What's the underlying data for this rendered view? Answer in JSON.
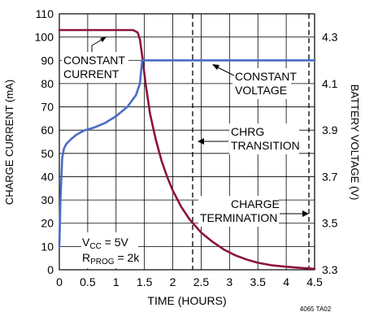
{
  "chart_data": {
    "type": "line",
    "xlabel": "TIME (HOURS)",
    "ylabel": "CHARGE CURRENT (mA)",
    "y2label": "BATTERY VOLTAGE (V)",
    "xlim": [
      0,
      4.5
    ],
    "ylim": [
      0,
      110
    ],
    "y2lim": [
      3.3,
      4.4
    ],
    "x_ticks": [
      "0",
      "0.5",
      "1",
      "1.5",
      "2",
      "2.5",
      "3",
      "3.5",
      "4",
      "4.5"
    ],
    "y_ticks": [
      "0",
      "10",
      "20",
      "30",
      "40",
      "50",
      "60",
      "70",
      "80",
      "90",
      "100",
      "110"
    ],
    "y2_ticks": [
      "3.3",
      "3.5",
      "3.7",
      "3.9",
      "4.1",
      "4.3"
    ],
    "grid": true,
    "series": [
      {
        "name": "CHARGE CURRENT",
        "axis": "left",
        "color": "#8b1538",
        "x": [
          0,
          0.3,
          0.8,
          1.1,
          1.3,
          1.38,
          1.42,
          1.46,
          1.52,
          1.6,
          1.7,
          1.8,
          1.9,
          2.0,
          2.15,
          2.3,
          2.5,
          2.7,
          2.9,
          3.1,
          3.3,
          3.5,
          3.75,
          4.0,
          4.25,
          4.5
        ],
        "values": [
          103,
          103,
          103,
          103,
          103,
          102,
          99,
          92,
          80,
          67,
          56,
          47,
          40,
          34,
          27,
          21.5,
          16,
          12,
          8.7,
          6.2,
          4.4,
          3.0,
          1.9,
          1.3,
          0.8,
          0.4
        ]
      },
      {
        "name": "BATTERY VOLTAGE",
        "axis": "right",
        "color": "#4a6cc6",
        "x": [
          0,
          0.02,
          0.05,
          0.08,
          0.12,
          0.2,
          0.3,
          0.45,
          0.6,
          0.8,
          1.0,
          1.2,
          1.35,
          1.42,
          1.46,
          1.6,
          2.0,
          3.0,
          4.0,
          4.5
        ],
        "values": [
          3.4,
          3.6,
          3.78,
          3.82,
          3.84,
          3.86,
          3.88,
          3.9,
          3.91,
          3.93,
          3.96,
          4.0,
          4.05,
          4.1,
          4.2,
          4.2,
          4.2,
          4.2,
          4.2,
          4.2
        ]
      }
    ],
    "vlines": [
      2.35,
      4.4
    ],
    "annotations": {
      "constant_current": [
        "CONSTANT",
        "CURRENT"
      ],
      "constant_voltage": [
        "CONSTANT",
        "VOLTAGE"
      ],
      "chrg_transition": [
        "CHRG",
        "TRANSITION"
      ],
      "charge_termination": [
        "CHARGE",
        "TERMINATION"
      ],
      "vcc": [
        "V",
        "CC",
        " = 5V"
      ],
      "rprog": [
        "R",
        "PROG",
        " = 2k"
      ]
    },
    "figure_code": "4065 TA02"
  }
}
